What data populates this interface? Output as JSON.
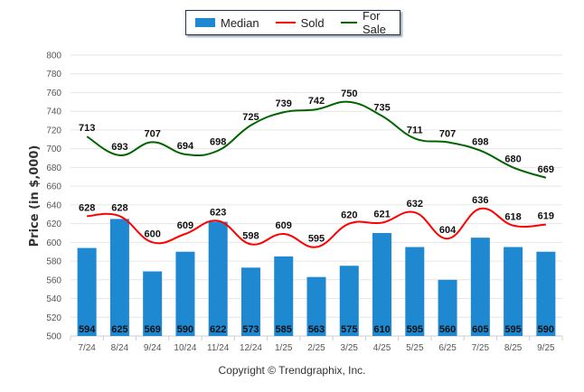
{
  "chart_data": {
    "type": "bar",
    "title": "",
    "xlabel": "",
    "ylabel": "Price (in $,000)",
    "ylim": [
      500,
      800
    ],
    "ytick_step": 20,
    "grid": true,
    "legend_position": "top-center",
    "categories": [
      "7/24",
      "8/24",
      "9/24",
      "10/24",
      "11/24",
      "12/24",
      "1/25",
      "2/25",
      "3/25",
      "4/25",
      "5/25",
      "6/25",
      "7/25",
      "8/25",
      "9/25"
    ],
    "series": [
      {
        "name": "Median",
        "type": "bar",
        "color": "#1e88d0",
        "values": [
          594,
          625,
          569,
          590,
          622,
          573,
          585,
          563,
          575,
          610,
          595,
          560,
          605,
          595,
          590
        ]
      },
      {
        "name": "Sold",
        "type": "line",
        "color": "#ff0000",
        "values": [
          628,
          628,
          600,
          609,
          623,
          598,
          609,
          595,
          620,
          621,
          632,
          604,
          636,
          618,
          619
        ]
      },
      {
        "name": "For Sale",
        "type": "line",
        "color": "#006400",
        "values": [
          713,
          693,
          707,
          694,
          698,
          725,
          739,
          742,
          750,
          735,
          711,
          707,
          698,
          680,
          669
        ]
      }
    ]
  },
  "legend": {
    "items": [
      {
        "label": "Median",
        "color": "#1e88d0"
      },
      {
        "label": "Sold",
        "color": "#ff0000"
      },
      {
        "label": "For Sale",
        "color": "#006400"
      }
    ]
  },
  "footer": {
    "copyright": "Copyright © Trendgraphix, Inc."
  }
}
